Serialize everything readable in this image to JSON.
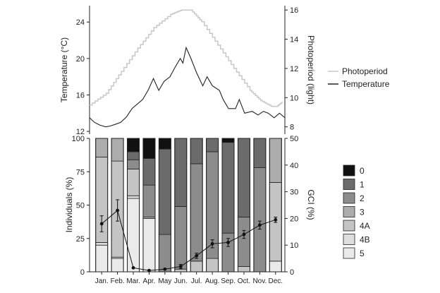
{
  "chart_data": [
    {
      "type": "line",
      "ylabel": "Temperature (°C)",
      "ylabel_right": "Photoperiod (light)",
      "y_ticks": [
        12,
        16,
        20,
        24
      ],
      "ylim": [
        11.7,
        25.8
      ],
      "y2_ticks": [
        8,
        10,
        12,
        14,
        16
      ],
      "y2lim": [
        7.5,
        16.3
      ],
      "grid": false,
      "legend_position": "right",
      "series": [
        {
          "name": "Photoperiod",
          "axis": "right",
          "color": "#c8c8c8",
          "x_day": [
            1,
            32,
            60,
            91,
            121,
            152,
            172,
            190,
            210,
            240,
            270,
            300,
            320,
            340,
            350,
            360
          ],
          "values": [
            9.5,
            10.3,
            11.8,
            13.4,
            14.8,
            15.7,
            16,
            16,
            15.2,
            13.6,
            12,
            10.5,
            9.8,
            9.4,
            9.4,
            9.7
          ]
        },
        {
          "name": "Temperature",
          "axis": "left",
          "color": "#222222",
          "x_day": [
            1,
            10,
            20,
            31,
            40,
            50,
            59,
            70,
            80,
            90,
            100,
            110,
            120,
            130,
            140,
            151,
            160,
            170,
            175,
            181,
            190,
            200,
            212,
            220,
            230,
            243,
            250,
            260,
            273,
            280,
            290,
            304,
            315,
            325,
            334,
            345,
            355,
            365
          ],
          "values": [
            13.5,
            13,
            12.7,
            12.5,
            12.6,
            12.8,
            13,
            13.6,
            14.5,
            15,
            15.5,
            16.5,
            17.8,
            16.5,
            17.5,
            18,
            19,
            20,
            19.5,
            21.2,
            20,
            18.5,
            17,
            18,
            17,
            16.5,
            15.5,
            14.5,
            14.5,
            15.5,
            14,
            14.2,
            13.8,
            14.2,
            14,
            13.5,
            14,
            13.5
          ]
        }
      ]
    },
    {
      "type": "bar",
      "stacked": true,
      "categories": [
        "Jan.",
        "Feb.",
        "Mar.",
        "Apr.",
        "May",
        "Jun.",
        "Jul.",
        "Aug.",
        "Sep.",
        "Oct.",
        "Nov.",
        "Dec."
      ],
      "ylabel": "Individuals (%)",
      "ylabel_right": "GCI (%)",
      "ylim": [
        0,
        100
      ],
      "y_ticks": [
        0,
        25,
        50,
        75,
        100
      ],
      "y2lim": [
        0,
        50
      ],
      "y2_ticks": [
        0,
        10,
        20,
        30,
        40,
        50
      ],
      "legend_position": "right",
      "grid": false,
      "series": [
        {
          "name": "5",
          "color": "#eaeaea",
          "values": [
            20,
            10,
            55,
            40,
            0,
            0,
            0,
            0,
            0,
            0,
            0,
            8
          ]
        },
        {
          "name": "4B",
          "color": "#dedede",
          "values": [
            2,
            1,
            2,
            0,
            0,
            0,
            0,
            0,
            0,
            0,
            0,
            0
          ]
        },
        {
          "name": "4A",
          "color": "#c4c4c4",
          "values": [
            64,
            72,
            20,
            1,
            0,
            2,
            8,
            10,
            0,
            4,
            0,
            59
          ]
        },
        {
          "name": "3",
          "color": "#adadad",
          "values": [
            14,
            17,
            0,
            0,
            0,
            0,
            0,
            0,
            0,
            0,
            0,
            33
          ]
        },
        {
          "name": "2",
          "color": "#8c8c8c",
          "values": [
            0,
            0,
            7,
            24,
            28,
            47,
            73,
            80,
            29,
            37,
            78,
            0
          ]
        },
        {
          "name": "1",
          "color": "#6b6b6b",
          "values": [
            0,
            0,
            6,
            20,
            64,
            51,
            19,
            10,
            68,
            59,
            22,
            0
          ]
        },
        {
          "name": "0",
          "color": "#111111",
          "values": [
            0,
            0,
            10,
            15,
            8,
            0,
            0,
            0,
            3,
            0,
            0,
            0
          ]
        }
      ],
      "gci": {
        "name": "GCI",
        "axis": "right",
        "values": [
          18,
          23,
          1.5,
          0.5,
          1,
          2,
          6,
          10.5,
          11,
          14,
          17.5,
          19.5
        ],
        "errors": [
          3,
          4,
          0,
          0,
          0,
          0.8,
          1,
          1.5,
          1.5,
          1.5,
          1.5,
          1
        ]
      }
    }
  ]
}
